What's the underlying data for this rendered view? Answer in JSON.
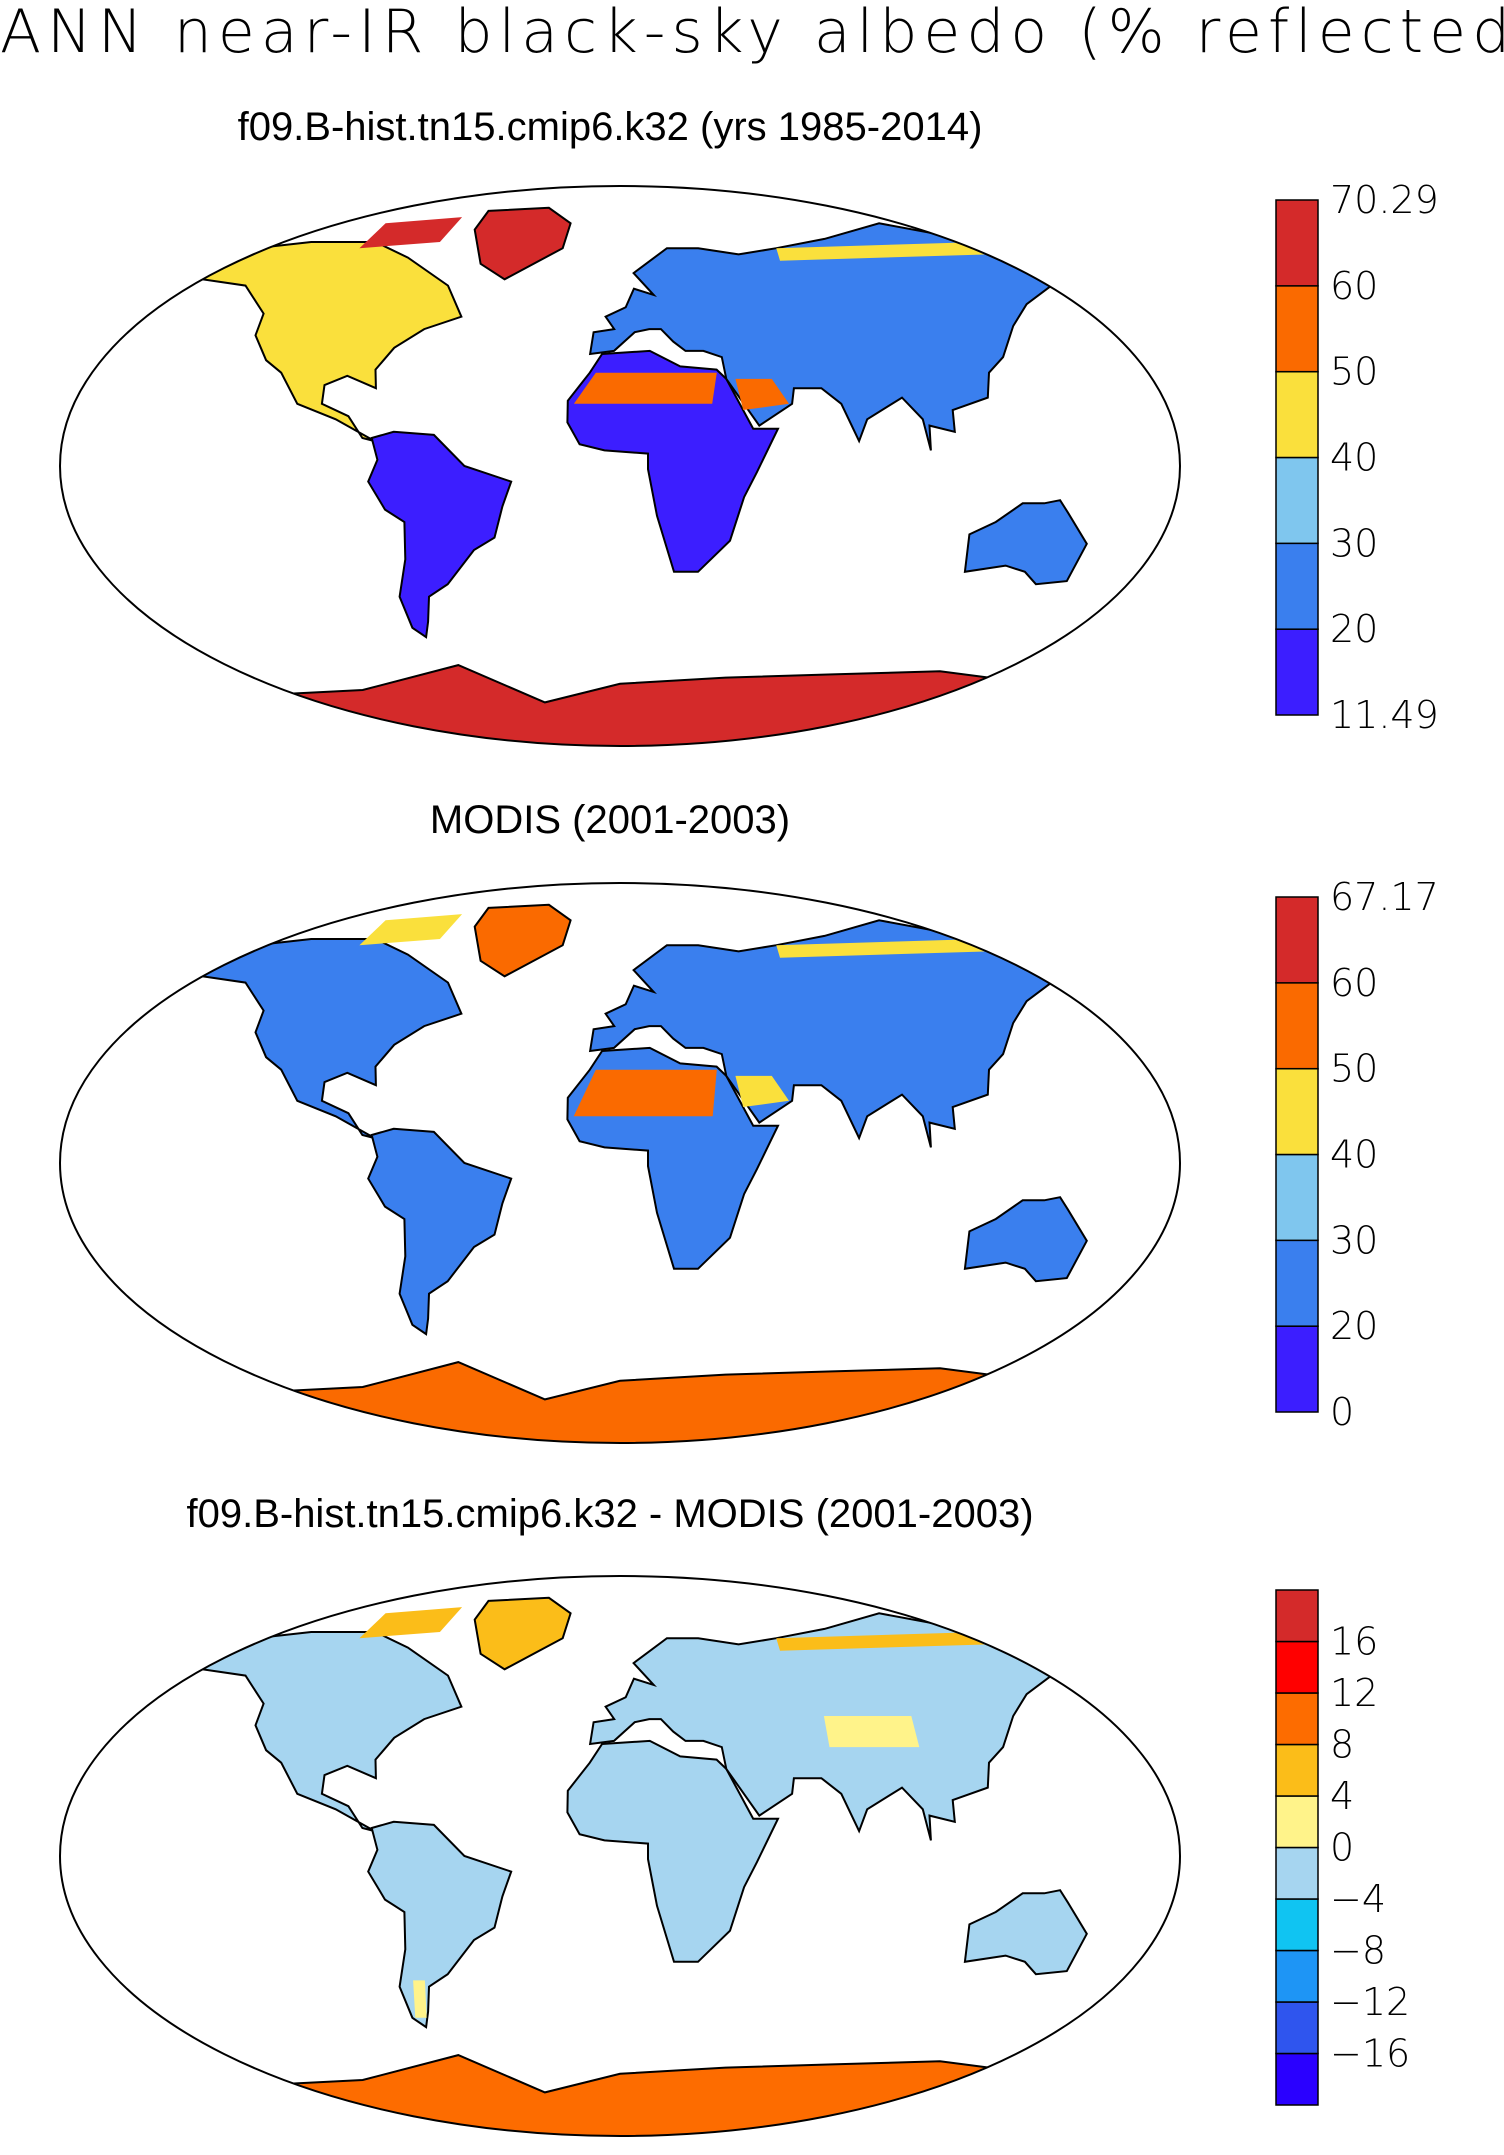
{
  "main_title": "ANN near-IR black-sky albedo (% reflected)",
  "panels": [
    {
      "title": "f09.B-hist.tn15.cmip6.k32 (yrs 1985-2014)",
      "colorbar": {
        "colors": [
          "#3c1eff",
          "#3a7fee",
          "#7fc6ee",
          "#fae03c",
          "#fa6a00",
          "#d42a2a"
        ],
        "labels": [
          "11.49",
          "20",
          "30",
          "40",
          "50",
          "60",
          "70.29"
        ]
      }
    },
    {
      "title": "MODIS (2001-2003)",
      "colorbar": {
        "colors": [
          "#3c1eff",
          "#3a7fee",
          "#7fc6ee",
          "#fae03c",
          "#fa6a00",
          "#d42a2a"
        ],
        "labels": [
          "0",
          "20",
          "30",
          "40",
          "50",
          "60",
          "67.17"
        ]
      }
    },
    {
      "title": "f09.B-hist.tn15.cmip6.k32 - MODIS (2001-2003)",
      "colorbar": {
        "colors": [
          "#2a00ff",
          "#2f55ee",
          "#1e95f5",
          "#10c4f2",
          "#a6d5f0",
          "#fff38a",
          "#fbbd19",
          "#fd6c00",
          "#ff0000",
          "#d42a2a"
        ],
        "labels": [
          "−16",
          "−12",
          "−8",
          "−4",
          "0",
          "4",
          "8",
          "12",
          "16"
        ]
      }
    }
  ]
}
